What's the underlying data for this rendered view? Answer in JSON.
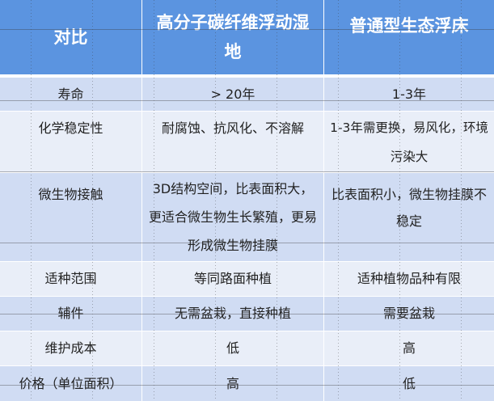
{
  "colors": {
    "header": "#5b94e0",
    "row_dark": "#d0dcf3",
    "row_light": "#e9eef8"
  },
  "table": {
    "headers": [
      "对比",
      "高分子碳纤维浮动湿地",
      "普通型生态浮床"
    ],
    "rows": [
      [
        "寿命",
        "> 20年",
        "1-3年"
      ],
      [
        "化学稳定性",
        "耐腐蚀、抗风化、不溶解",
        "1-3年需更换，易风化，环境污染大"
      ],
      [
        "微生物接触",
        "3D结构空间，比表面积大，更适合微生物生长繁殖，更易形成微生物挂膜",
        "比表面积小，微生物挂膜不稳定"
      ],
      [
        "适种范围",
        "等同路面种植",
        "适种植物品种有限"
      ],
      [
        "辅件",
        "无需盆栽，直接种植",
        "需要盆栽"
      ],
      [
        "维护成本",
        "低",
        "高"
      ],
      [
        "价格（单位面积）",
        "高",
        "低"
      ]
    ]
  }
}
